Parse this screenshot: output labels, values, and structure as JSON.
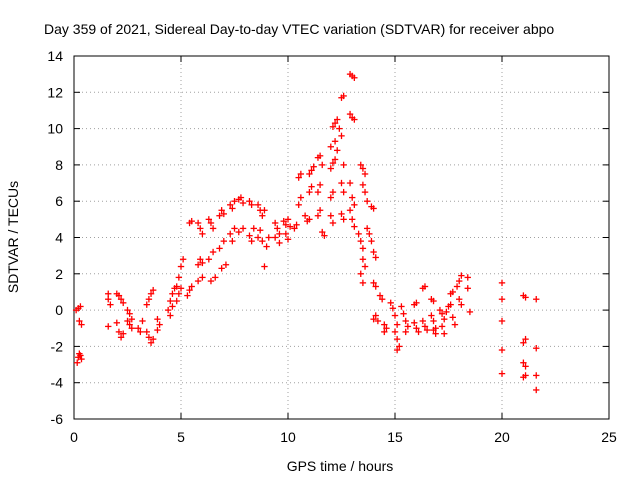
{
  "chart_data": {
    "type": "scatter",
    "title": "Day 359 of 2021, Sidereal Day-to-day VTEC variation (SDTVAR) for receiver abpo",
    "xlabel": "GPS time / hours",
    "ylabel": "SDTVAR / TECUs",
    "xlim": [
      0,
      25
    ],
    "ylim": [
      -6,
      14
    ],
    "x_ticks": [
      0,
      5,
      10,
      15,
      20,
      25
    ],
    "x_tick_labels": [
      "0",
      "5",
      "10",
      "15",
      "20",
      "25"
    ],
    "y_ticks": [
      -6,
      -4,
      -2,
      0,
      2,
      4,
      6,
      8,
      10,
      12,
      14
    ],
    "y_tick_labels": [
      "-6",
      "-4",
      "-2",
      "0",
      "2",
      "4",
      "6",
      "8",
      "10",
      "12",
      "14"
    ],
    "grid": true,
    "marker": "+",
    "marker_color": "#ff0000",
    "series": [
      {
        "name": "SDTVAR",
        "points": [
          [
            0.15,
            -2.9
          ],
          [
            0.2,
            -2.6
          ],
          [
            0.25,
            -2.4
          ],
          [
            0.3,
            -2.5
          ],
          [
            0.35,
            -2.7
          ],
          [
            0.1,
            0.0
          ],
          [
            0.2,
            0.1
          ],
          [
            0.3,
            0.2
          ],
          [
            0.25,
            -0.6
          ],
          [
            0.35,
            -0.8
          ],
          [
            1.6,
            0.9
          ],
          [
            1.6,
            0.6
          ],
          [
            1.6,
            -0.9
          ],
          [
            1.7,
            0.3
          ],
          [
            2.0,
            0.9
          ],
          [
            2.1,
            0.8
          ],
          [
            2.2,
            0.6
          ],
          [
            2.3,
            0.4
          ],
          [
            2.0,
            -0.7
          ],
          [
            2.1,
            -1.2
          ],
          [
            2.2,
            -1.5
          ],
          [
            2.3,
            -1.3
          ],
          [
            2.5,
            0.0
          ],
          [
            2.6,
            -0.2
          ],
          [
            2.7,
            -0.5
          ],
          [
            2.6,
            -0.8
          ],
          [
            2.5,
            -0.6
          ],
          [
            2.7,
            -1.0
          ],
          [
            3.0,
            -1.0
          ],
          [
            3.1,
            -1.2
          ],
          [
            3.2,
            -0.6
          ],
          [
            3.4,
            0.3
          ],
          [
            3.5,
            0.6
          ],
          [
            3.6,
            0.9
          ],
          [
            3.7,
            1.1
          ],
          [
            3.4,
            -1.2
          ],
          [
            3.5,
            -1.5
          ],
          [
            3.6,
            -1.8
          ],
          [
            3.7,
            -1.6
          ],
          [
            3.9,
            -0.5
          ],
          [
            4.0,
            -0.8
          ],
          [
            3.9,
            -1.1
          ],
          [
            4.4,
            0.0
          ],
          [
            4.5,
            0.5
          ],
          [
            4.6,
            0.9
          ],
          [
            4.7,
            1.2
          ],
          [
            4.5,
            -0.3
          ],
          [
            4.6,
            0.2
          ],
          [
            4.8,
            1.3
          ],
          [
            4.9,
            1.8
          ],
          [
            5.0,
            2.4
          ],
          [
            5.1,
            2.8
          ],
          [
            4.8,
            0.5
          ],
          [
            4.9,
            0.9
          ],
          [
            5.0,
            1.2
          ],
          [
            5.4,
            4.8
          ],
          [
            5.5,
            4.9
          ],
          [
            5.3,
            0.8
          ],
          [
            5.4,
            1.1
          ],
          [
            5.5,
            1.3
          ],
          [
            5.8,
            4.8
          ],
          [
            5.9,
            4.5
          ],
          [
            6.0,
            4.2
          ],
          [
            5.8,
            2.5
          ],
          [
            5.9,
            2.8
          ],
          [
            6.0,
            2.6
          ],
          [
            5.8,
            1.6
          ],
          [
            6.0,
            1.8
          ],
          [
            6.3,
            5.0
          ],
          [
            6.4,
            4.8
          ],
          [
            6.5,
            4.5
          ],
          [
            6.3,
            2.8
          ],
          [
            6.5,
            3.2
          ],
          [
            6.4,
            1.6
          ],
          [
            6.6,
            1.8
          ],
          [
            6.8,
            5.2
          ],
          [
            6.9,
            5.5
          ],
          [
            7.0,
            5.3
          ],
          [
            6.8,
            3.4
          ],
          [
            7.0,
            3.8
          ],
          [
            6.9,
            2.3
          ],
          [
            7.1,
            2.5
          ],
          [
            7.3,
            5.8
          ],
          [
            7.4,
            5.6
          ],
          [
            7.5,
            6.0
          ],
          [
            7.3,
            4.2
          ],
          [
            7.5,
            4.5
          ],
          [
            7.4,
            3.8
          ],
          [
            7.7,
            6.1
          ],
          [
            7.8,
            6.2
          ],
          [
            7.9,
            5.9
          ],
          [
            7.7,
            4.3
          ],
          [
            7.9,
            4.5
          ],
          [
            8.2,
            6.0
          ],
          [
            8.3,
            5.8
          ],
          [
            8.2,
            4.1
          ],
          [
            8.3,
            3.8
          ],
          [
            8.4,
            4.5
          ],
          [
            8.6,
            5.8
          ],
          [
            8.7,
            5.5
          ],
          [
            8.8,
            5.2
          ],
          [
            8.6,
            4.0
          ],
          [
            8.7,
            4.4
          ],
          [
            8.8,
            3.8
          ],
          [
            9.0,
            3.5
          ],
          [
            9.1,
            4.0
          ],
          [
            8.9,
            5.5
          ],
          [
            8.9,
            2.4
          ],
          [
            9.4,
            4.8
          ],
          [
            9.5,
            4.5
          ],
          [
            9.6,
            4.2
          ],
          [
            9.4,
            4.0
          ],
          [
            9.6,
            3.7
          ],
          [
            9.8,
            4.9
          ],
          [
            9.9,
            4.7
          ],
          [
            10.0,
            5.0
          ],
          [
            10.1,
            4.6
          ],
          [
            9.9,
            4.2
          ],
          [
            10.0,
            3.9
          ],
          [
            10.3,
            4.5
          ],
          [
            10.4,
            4.7
          ],
          [
            10.5,
            7.3
          ],
          [
            10.6,
            7.5
          ],
          [
            10.5,
            5.8
          ],
          [
            10.6,
            6.2
          ],
          [
            10.8,
            5.2
          ],
          [
            10.9,
            4.9
          ],
          [
            11.0,
            5.0
          ],
          [
            11.0,
            6.5
          ],
          [
            11.1,
            6.8
          ],
          [
            11.0,
            7.5
          ],
          [
            11.1,
            7.7
          ],
          [
            11.2,
            7.9
          ],
          [
            11.4,
            8.4
          ],
          [
            11.5,
            8.5
          ],
          [
            11.6,
            8.0
          ],
          [
            11.4,
            6.5
          ],
          [
            11.5,
            6.9
          ],
          [
            11.4,
            5.2
          ],
          [
            11.5,
            5.5
          ],
          [
            11.6,
            4.3
          ],
          [
            11.7,
            4.1
          ],
          [
            12.0,
            6.2
          ],
          [
            12.1,
            6.5
          ],
          [
            12.0,
            7.8
          ],
          [
            12.1,
            8.1
          ],
          [
            12.2,
            8.3
          ],
          [
            12.0,
            5.2
          ],
          [
            12.1,
            4.8
          ],
          [
            12.1,
            10.1
          ],
          [
            12.2,
            10.3
          ],
          [
            12.3,
            10.5
          ],
          [
            12.0,
            9.0
          ],
          [
            12.2,
            9.3
          ],
          [
            12.3,
            8.8
          ],
          [
            12.5,
            11.7
          ],
          [
            12.6,
            11.8
          ],
          [
            12.4,
            10.0
          ],
          [
            12.5,
            9.6
          ],
          [
            12.6,
            8.0
          ],
          [
            12.5,
            7.0
          ],
          [
            12.6,
            6.5
          ],
          [
            12.5,
            5.3
          ],
          [
            12.6,
            5.0
          ],
          [
            12.9,
            13.0
          ],
          [
            13.0,
            12.9
          ],
          [
            13.1,
            12.8
          ],
          [
            12.9,
            10.8
          ],
          [
            13.0,
            10.6
          ],
          [
            13.1,
            10.5
          ],
          [
            12.9,
            7.0
          ],
          [
            13.0,
            6.2
          ],
          [
            13.1,
            5.8
          ],
          [
            12.9,
            5.5
          ],
          [
            13.0,
            5.0
          ],
          [
            13.1,
            4.6
          ],
          [
            13.3,
            4.2
          ],
          [
            13.4,
            3.8
          ],
          [
            13.5,
            3.4
          ],
          [
            13.5,
            2.8
          ],
          [
            13.6,
            2.4
          ],
          [
            13.4,
            2.0
          ],
          [
            13.5,
            1.5
          ],
          [
            13.4,
            8.0
          ],
          [
            13.5,
            7.8
          ],
          [
            13.6,
            7.5
          ],
          [
            13.5,
            6.9
          ],
          [
            13.6,
            6.5
          ],
          [
            13.7,
            6.0
          ],
          [
            13.7,
            4.5
          ],
          [
            13.8,
            4.2
          ],
          [
            13.9,
            3.8
          ],
          [
            14.0,
            3.2
          ],
          [
            14.1,
            2.9
          ],
          [
            13.9,
            5.7
          ],
          [
            14.0,
            5.6
          ],
          [
            14.0,
            1.5
          ],
          [
            14.1,
            1.3
          ],
          [
            14.0,
            -0.5
          ],
          [
            14.1,
            -0.3
          ],
          [
            14.2,
            -0.6
          ],
          [
            14.3,
            0.8
          ],
          [
            14.4,
            0.6
          ],
          [
            14.5,
            -0.8
          ],
          [
            14.6,
            -1.0
          ],
          [
            14.5,
            -1.2
          ],
          [
            14.8,
            0.4
          ],
          [
            14.9,
            0.1
          ],
          [
            15.0,
            -0.3
          ],
          [
            15.1,
            -0.8
          ],
          [
            15.0,
            -1.2
          ],
          [
            15.1,
            -1.6
          ],
          [
            15.2,
            -2.0
          ],
          [
            15.1,
            -2.2
          ],
          [
            15.3,
            0.2
          ],
          [
            15.4,
            -0.2
          ],
          [
            15.5,
            -0.6
          ],
          [
            15.6,
            -0.9
          ],
          [
            15.5,
            -1.2
          ],
          [
            15.9,
            0.3
          ],
          [
            16.0,
            0.4
          ],
          [
            15.9,
            -0.7
          ],
          [
            16.0,
            -1.0
          ],
          [
            16.1,
            -1.2
          ],
          [
            16.3,
            1.2
          ],
          [
            16.4,
            1.3
          ],
          [
            16.3,
            -0.6
          ],
          [
            16.4,
            -0.9
          ],
          [
            16.5,
            -1.1
          ],
          [
            16.7,
            0.6
          ],
          [
            16.8,
            0.5
          ],
          [
            16.7,
            -0.3
          ],
          [
            16.8,
            -0.6
          ],
          [
            16.9,
            -1.0
          ],
          [
            16.9,
            -1.3
          ],
          [
            16.8,
            -1.1
          ],
          [
            17.1,
            0.0
          ],
          [
            17.2,
            -0.2
          ],
          [
            17.3,
            -0.5
          ],
          [
            17.2,
            -0.9
          ],
          [
            17.3,
            -1.3
          ],
          [
            17.4,
            -0.1
          ],
          [
            17.5,
            0.2
          ],
          [
            17.6,
            0.9
          ],
          [
            17.7,
            1.0
          ],
          [
            17.6,
            0.3
          ],
          [
            17.7,
            -0.4
          ],
          [
            17.8,
            -0.8
          ],
          [
            17.9,
            1.3
          ],
          [
            18.0,
            1.6
          ],
          [
            18.1,
            1.9
          ],
          [
            18.0,
            0.6
          ],
          [
            18.1,
            0.3
          ],
          [
            18.4,
            1.8
          ],
          [
            18.4,
            1.2
          ],
          [
            18.5,
            -0.1
          ],
          [
            20.0,
            1.5
          ],
          [
            20.0,
            0.6
          ],
          [
            20.0,
            -0.6
          ],
          [
            20.0,
            -2.2
          ],
          [
            20.0,
            -3.5
          ],
          [
            21.0,
            0.8
          ],
          [
            21.1,
            0.7
          ],
          [
            21.0,
            -1.8
          ],
          [
            21.1,
            -1.6
          ],
          [
            21.0,
            -2.9
          ],
          [
            21.1,
            -3.1
          ],
          [
            21.0,
            -3.7
          ],
          [
            21.1,
            -3.6
          ],
          [
            21.6,
            0.6
          ],
          [
            21.6,
            -2.1
          ],
          [
            21.6,
            -3.6
          ],
          [
            21.6,
            -4.4
          ]
        ]
      }
    ]
  }
}
